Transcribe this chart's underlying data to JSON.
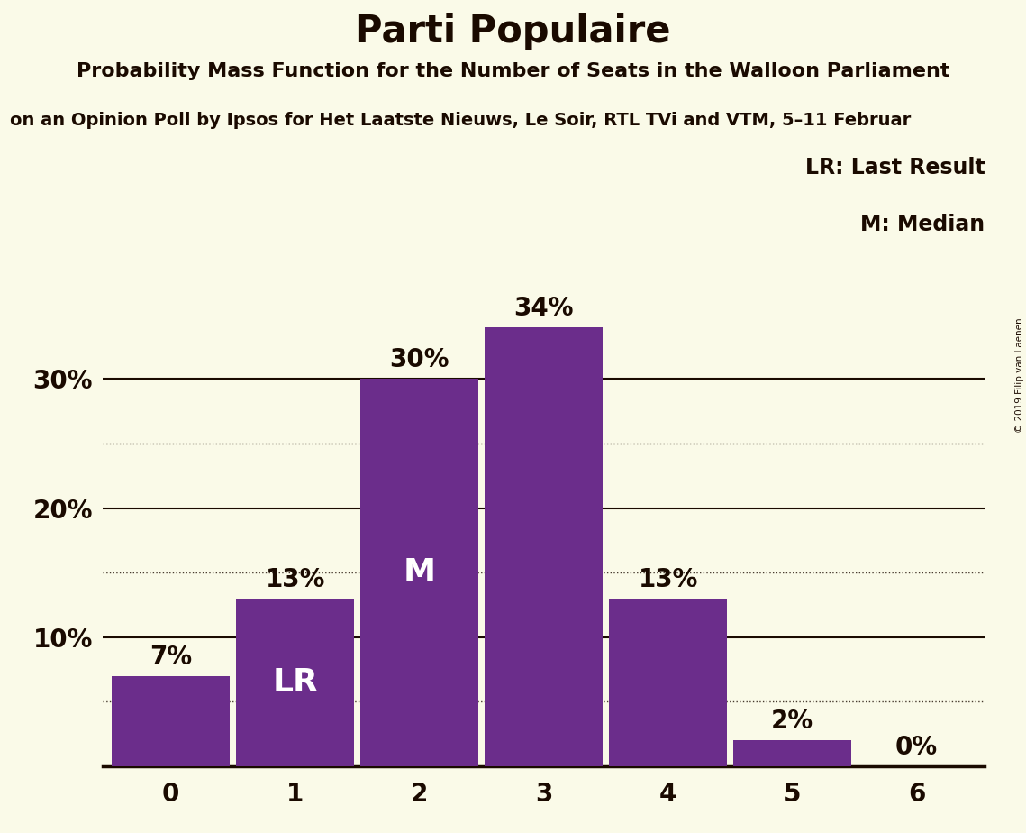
{
  "title": "Parti Populaire",
  "subtitle1": "Probability Mass Function for the Number of Seats in the Walloon Parliament",
  "subtitle2": "on an Opinion Poll by Ipsos for Het Laatste Nieuws, Le Soir, RTL TVi and VTM, 5–11 Februar",
  "copyright": "© 2019 Filip van Laenen",
  "categories": [
    0,
    1,
    2,
    3,
    4,
    5,
    6
  ],
  "values": [
    7,
    13,
    30,
    34,
    13,
    2,
    0
  ],
  "bar_color": "#6b2d8b",
  "background_color": "#fafae8",
  "text_color": "#1a0a00",
  "yticks": [
    10,
    20,
    30
  ],
  "ylim": [
    0,
    40
  ],
  "dotted_lines": [
    5,
    15,
    25,
    5
  ],
  "solid_lines": [
    10,
    20,
    30
  ],
  "lr_bar_idx": 1,
  "m_bar_idx": 2,
  "lr_label": "LR",
  "m_label": "M",
  "legend_lr": "LR: Last Result",
  "legend_m": "M: Median",
  "bar_label_fontsize": 20,
  "inner_label_fontsize": 26
}
